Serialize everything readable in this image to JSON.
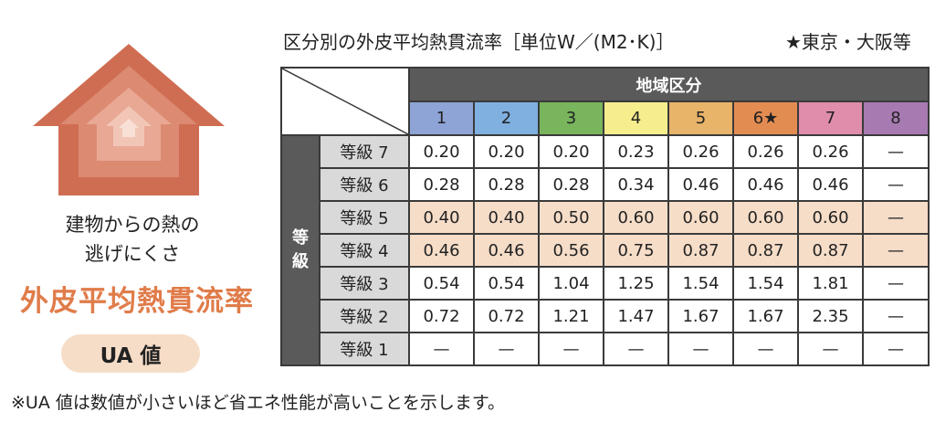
{
  "left": {
    "caption_line1": "建物からの熱の",
    "caption_line2": "逃げにくさ",
    "metric_title": "外皮平均熱貫流率",
    "badge": "UA 値",
    "house_colors": [
      "#cf6d52",
      "#dc8a72",
      "#e8a894",
      "#f2c6b6",
      "#f8e0d6"
    ]
  },
  "table": {
    "title": "区分別の外皮平均熱貫流率［単位W／(M2･K)］",
    "location_note": "★東京・大阪等",
    "region_header": "地域区分",
    "grade_axis": "等級",
    "zones": [
      {
        "label": "1",
        "color": "#8ea3d6"
      },
      {
        "label": "2",
        "color": "#7fb0df"
      },
      {
        "label": "3",
        "color": "#78b55c"
      },
      {
        "label": "4",
        "color": "#f6ee8c"
      },
      {
        "label": "5",
        "color": "#e8b46a"
      },
      {
        "label": "6★",
        "color": "#e38c52"
      },
      {
        "label": "7",
        "color": "#df8dab"
      },
      {
        "label": "8",
        "color": "#a87ab2"
      }
    ],
    "rows": [
      {
        "grade": "等級 7",
        "highlight": false,
        "values": [
          "0.20",
          "0.20",
          "0.20",
          "0.23",
          "0.26",
          "0.26",
          "0.26",
          "—"
        ]
      },
      {
        "grade": "等級 6",
        "highlight": false,
        "values": [
          "0.28",
          "0.28",
          "0.28",
          "0.34",
          "0.46",
          "0.46",
          "0.46",
          "—"
        ]
      },
      {
        "grade": "等級 5",
        "highlight": true,
        "values": [
          "0.40",
          "0.40",
          "0.50",
          "0.60",
          "0.60",
          "0.60",
          "0.60",
          "—"
        ]
      },
      {
        "grade": "等級 4",
        "highlight": true,
        "values": [
          "0.46",
          "0.46",
          "0.56",
          "0.75",
          "0.87",
          "0.87",
          "0.87",
          "—"
        ]
      },
      {
        "grade": "等級 3",
        "highlight": false,
        "values": [
          "0.54",
          "0.54",
          "1.04",
          "1.25",
          "1.54",
          "1.54",
          "1.81",
          "—"
        ]
      },
      {
        "grade": "等級 2",
        "highlight": false,
        "values": [
          "0.72",
          "0.72",
          "1.21",
          "1.47",
          "1.67",
          "1.67",
          "2.35",
          "—"
        ]
      },
      {
        "grade": "等級 1",
        "highlight": false,
        "values": [
          "—",
          "—",
          "—",
          "—",
          "—",
          "—",
          "—",
          "—"
        ]
      }
    ]
  },
  "footnote": "※UA 値は数値が小さいほど省エネ性能が高いことを示します。"
}
